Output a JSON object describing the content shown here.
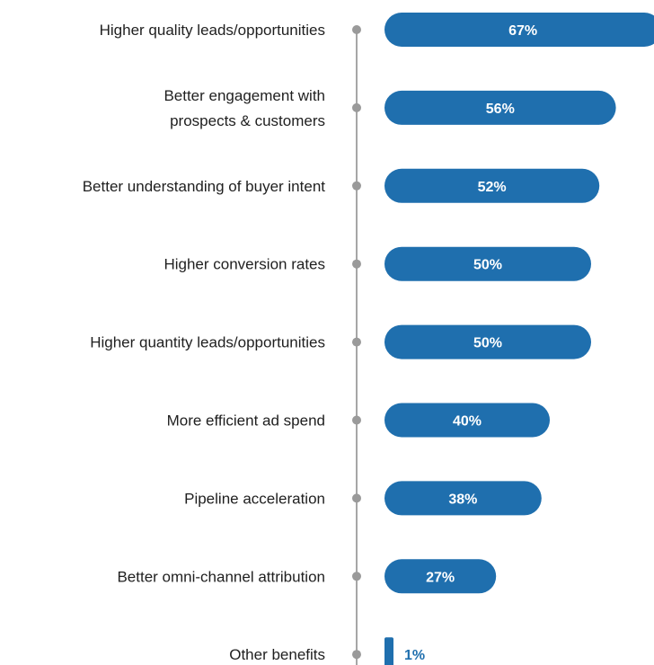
{
  "chart_data": {
    "type": "bar",
    "orientation": "horizontal",
    "title": "",
    "xlabel": "",
    "ylabel": "",
    "categories": [
      "Higher quality leads/opportunities",
      "Better engagement with prospects & customers",
      "Better understanding of buyer intent",
      "Higher conversion rates",
      "Higher quantity leads/opportunities",
      "More efficient ad spend",
      "Pipeline acceleration",
      "Better omni-channel attribution",
      "Other benefits"
    ],
    "category_lines": [
      [
        "Higher quality leads/opportunities"
      ],
      [
        "Better engagement with",
        "prospects & customers"
      ],
      [
        "Better understanding of buyer intent"
      ],
      [
        "Higher conversion rates"
      ],
      [
        "Higher quantity leads/opportunities"
      ],
      [
        "More efficient ad spend"
      ],
      [
        "Pipeline acceleration"
      ],
      [
        "Better omni-channel attribution"
      ],
      [
        "Other benefits"
      ]
    ],
    "values": [
      67,
      56,
      52,
      50,
      50,
      40,
      38,
      27,
      1
    ],
    "data_labels": [
      "67%",
      "56%",
      "52%",
      "50%",
      "50%",
      "40%",
      "38%",
      "27%",
      "1%"
    ],
    "unit": "%",
    "grid": false,
    "legend": "none",
    "colors": {
      "bar": "#1f6fae",
      "bar_label_inside": "#ffffff",
      "bar_label_outside": "#1f6fae",
      "axis_line": "#a6a6a6",
      "axis_dot": "#9a9a9a",
      "category_text": "#1f1f1f"
    }
  }
}
